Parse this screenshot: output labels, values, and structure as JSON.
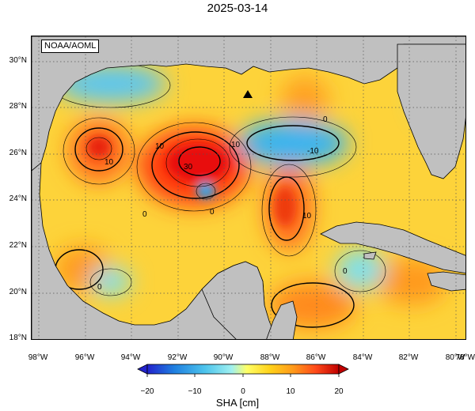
{
  "title": "2025-03-14",
  "source_label": "NOAA/AOML",
  "lat_labels": [
    "30°N",
    "28°N",
    "26°N",
    "24°N",
    "22°N",
    "20°N",
    "18°N"
  ],
  "lon_labels": [
    "98°W",
    "96°W",
    "94°W",
    "92°W",
    "90°W",
    "88°W",
    "86°W",
    "84°W",
    "82°W",
    "80°W",
    "78°W"
  ],
  "contour_labels": [
    "10",
    "10",
    "0",
    "30",
    "0",
    "10",
    "-10",
    "0",
    "10",
    "0",
    "0"
  ],
  "colorbar": {
    "label": "SHA [cm]",
    "ticks": [
      "−20",
      "−10",
      "0",
      "10",
      "20"
    ],
    "min": -20,
    "max": 20,
    "colors": [
      "#2222cc",
      "#1f7fe0",
      "#4cc3ec",
      "#7ff0f0",
      "#ffff66",
      "#ffd21a",
      "#ff9a1a",
      "#ff4a1a",
      "#c00000"
    ]
  },
  "colors": {
    "land": "#c0c0c0",
    "background_field": "#fdd33a",
    "grid": "#666666"
  },
  "features": {
    "warm_eddies": [
      {
        "name": "loop-current-eddy",
        "value": 30
      },
      {
        "name": "western-eddy",
        "value": 15
      },
      {
        "name": "loop-current",
        "value": 15
      },
      {
        "name": "caribbean-eddy",
        "value": 15
      }
    ],
    "cold_eddies": [
      {
        "name": "northern-shelf",
        "value": -10
      },
      {
        "name": "eastern-gulf",
        "value": -12
      },
      {
        "name": "central-cyclone",
        "value": -8
      },
      {
        "name": "campeche-cyclone",
        "value": -5
      },
      {
        "name": "cuba-south",
        "value": -5
      }
    ],
    "marker_icon": "black-triangle-icon"
  }
}
